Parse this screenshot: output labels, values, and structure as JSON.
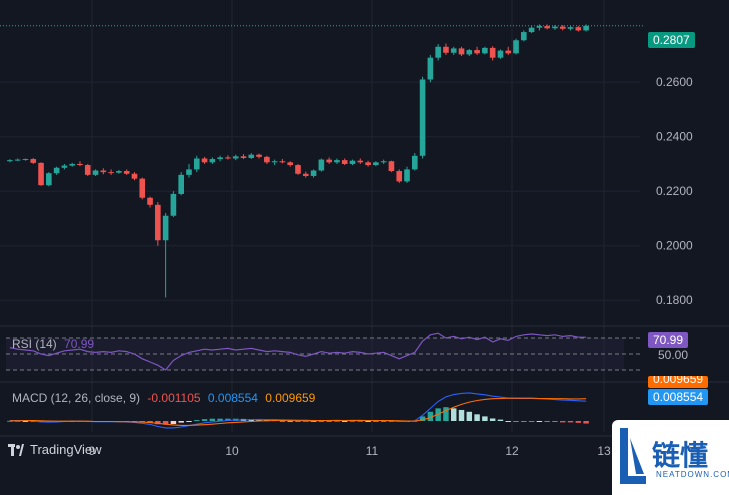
{
  "chart_data": {
    "type": "candlestick",
    "x_ticks": [
      "9",
      "10",
      "11",
      "12",
      "13"
    ],
    "y_ticks": [
      "0.2600",
      "0.2400",
      "0.2200",
      "0.2000",
      "0.1800"
    ],
    "ylim": [
      0.172,
      0.2865
    ],
    "last_price": "0.2807",
    "candles": [
      [
        0.231,
        0.2318,
        0.2306,
        0.2314
      ],
      [
        0.2314,
        0.232,
        0.231,
        0.2316
      ],
      [
        0.2316,
        0.232,
        0.2312,
        0.2318
      ],
      [
        0.2318,
        0.2322,
        0.23,
        0.2304
      ],
      [
        0.2304,
        0.2306,
        0.222,
        0.2222
      ],
      [
        0.2222,
        0.227,
        0.2218,
        0.2266
      ],
      [
        0.2266,
        0.229,
        0.226,
        0.2286
      ],
      [
        0.2286,
        0.23,
        0.228,
        0.2294
      ],
      [
        0.2294,
        0.2304,
        0.229,
        0.23
      ],
      [
        0.23,
        0.231,
        0.2292,
        0.2296
      ],
      [
        0.2296,
        0.23,
        0.2256,
        0.226
      ],
      [
        0.226,
        0.228,
        0.2256,
        0.2276
      ],
      [
        0.2276,
        0.2284,
        0.2262,
        0.227
      ],
      [
        0.227,
        0.228,
        0.226,
        0.2268
      ],
      [
        0.2268,
        0.2278,
        0.2264,
        0.2274
      ],
      [
        0.2274,
        0.228,
        0.226,
        0.2264
      ],
      [
        0.2264,
        0.227,
        0.224,
        0.2246
      ],
      [
        0.2246,
        0.225,
        0.217,
        0.2176
      ],
      [
        0.2176,
        0.218,
        0.214,
        0.215
      ],
      [
        0.215,
        0.216,
        0.2,
        0.202
      ],
      [
        0.202,
        0.212,
        0.181,
        0.211
      ],
      [
        0.211,
        0.22,
        0.2105,
        0.219
      ],
      [
        0.219,
        0.227,
        0.2185,
        0.226
      ],
      [
        0.226,
        0.23,
        0.225,
        0.228
      ],
      [
        0.228,
        0.233,
        0.227,
        0.232
      ],
      [
        0.232,
        0.2326,
        0.23,
        0.2306
      ],
      [
        0.2306,
        0.2324,
        0.23,
        0.2318
      ],
      [
        0.2318,
        0.233,
        0.231,
        0.2324
      ],
      [
        0.2324,
        0.2332,
        0.2316,
        0.232
      ],
      [
        0.232,
        0.2334,
        0.2314,
        0.2328
      ],
      [
        0.2328,
        0.2336,
        0.2318,
        0.2322
      ],
      [
        0.2322,
        0.234,
        0.2318,
        0.2334
      ],
      [
        0.2334,
        0.2338,
        0.232,
        0.2326
      ],
      [
        0.2326,
        0.233,
        0.23,
        0.2306
      ],
      [
        0.2306,
        0.2316,
        0.2296,
        0.231
      ],
      [
        0.231,
        0.2318,
        0.2302,
        0.2306
      ],
      [
        0.2306,
        0.231,
        0.229,
        0.2296
      ],
      [
        0.2296,
        0.23,
        0.226,
        0.2264
      ],
      [
        0.2264,
        0.2272,
        0.225,
        0.2256
      ],
      [
        0.2256,
        0.228,
        0.225,
        0.2276
      ],
      [
        0.2276,
        0.232,
        0.2272,
        0.2316
      ],
      [
        0.2316,
        0.2324,
        0.23,
        0.2306
      ],
      [
        0.2306,
        0.232,
        0.23,
        0.2314
      ],
      [
        0.2314,
        0.232,
        0.2296,
        0.23
      ],
      [
        0.23,
        0.2316,
        0.2296,
        0.2312
      ],
      [
        0.2312,
        0.232,
        0.23,
        0.2306
      ],
      [
        0.2306,
        0.2312,
        0.229,
        0.2296
      ],
      [
        0.2296,
        0.231,
        0.2292,
        0.2306
      ],
      [
        0.2306,
        0.2316,
        0.23,
        0.231
      ],
      [
        0.231,
        0.2312,
        0.227,
        0.2274
      ],
      [
        0.2274,
        0.228,
        0.223,
        0.2236
      ],
      [
        0.2236,
        0.229,
        0.223,
        0.228
      ],
      [
        0.228,
        0.234,
        0.2276,
        0.233
      ],
      [
        0.233,
        0.262,
        0.232,
        0.261
      ],
      [
        0.261,
        0.27,
        0.26,
        0.269
      ],
      [
        0.269,
        0.274,
        0.268,
        0.273
      ],
      [
        0.273,
        0.2742,
        0.27,
        0.2708
      ],
      [
        0.2708,
        0.273,
        0.27,
        0.2724
      ],
      [
        0.2724,
        0.273,
        0.2696,
        0.2702
      ],
      [
        0.2702,
        0.2722,
        0.2696,
        0.2718
      ],
      [
        0.2718,
        0.273,
        0.27,
        0.2706
      ],
      [
        0.2706,
        0.273,
        0.2702,
        0.2726
      ],
      [
        0.2726,
        0.2732,
        0.268,
        0.269
      ],
      [
        0.269,
        0.272,
        0.2686,
        0.2716
      ],
      [
        0.2716,
        0.273,
        0.27,
        0.2706
      ],
      [
        0.2706,
        0.276,
        0.2702,
        0.2754
      ],
      [
        0.2754,
        0.279,
        0.275,
        0.2784
      ],
      [
        0.2784,
        0.2808,
        0.278,
        0.28
      ],
      [
        0.28,
        0.2812,
        0.279,
        0.2806
      ],
      [
        0.2806,
        0.2812,
        0.2794,
        0.2798
      ],
      [
        0.2798,
        0.281,
        0.2792,
        0.2804
      ],
      [
        0.2804,
        0.281,
        0.279,
        0.2796
      ],
      [
        0.2796,
        0.2806,
        0.279,
        0.2802
      ],
      [
        0.2802,
        0.2806,
        0.2786,
        0.279
      ],
      [
        0.279,
        0.2812,
        0.2786,
        0.2807
      ]
    ],
    "colors": {
      "up": "#26a69a",
      "down": "#ef5350",
      "rsi": "#7e57c2",
      "macd_line": "#2962ff",
      "signal_line": "#ff6d00"
    },
    "rsi": {
      "label": "RSI (14)",
      "value": "70.99",
      "level_label": "50.00",
      "values": [
        58,
        56,
        55,
        54,
        50,
        48,
        51,
        54,
        55,
        56,
        53,
        52,
        53,
        52,
        54,
        53,
        50,
        44,
        40,
        36,
        30,
        42,
        48,
        52,
        54,
        56,
        55,
        56,
        57,
        55,
        56,
        57,
        55,
        53,
        54,
        53,
        52,
        49,
        47,
        50,
        53,
        51,
        52,
        51,
        53,
        52,
        50,
        51,
        52,
        48,
        44,
        48,
        52,
        66,
        74,
        76,
        70,
        72,
        69,
        71,
        68,
        71,
        65,
        69,
        67,
        72,
        74,
        75,
        74,
        73,
        74,
        72,
        73,
        71,
        71
      ]
    },
    "macd": {
      "label": "MACD (12, 26, close, 9)",
      "hist_value": "-0.001105",
      "macd_value": "0.008554",
      "signal_value": "0.009659",
      "scale_label": "0.009659",
      "macd_line": [
        0.0002,
        0.0002,
        0.0002,
        0.0001,
        -0.0004,
        -0.0005,
        -0.0004,
        -0.0002,
        -0.0001,
        0,
        -0.0002,
        -0.0003,
        -0.0003,
        -0.0003,
        -0.0003,
        -0.0004,
        -0.0006,
        -0.001,
        -0.0015,
        -0.0024,
        -0.003,
        -0.003,
        -0.0026,
        -0.002,
        -0.0014,
        -0.0008,
        -0.0004,
        -0.0001,
        0.0002,
        0.0004,
        0.0005,
        0.0006,
        0.0007,
        0.0006,
        0.0006,
        0.0005,
        0.0004,
        0.0002,
        0,
        0,
        0.0002,
        0.0002,
        0.0003,
        0.0002,
        0.0003,
        0.0003,
        0.0002,
        0.0002,
        0.0002,
        0.0001,
        -0.0002,
        -0.0002,
        0.0001,
        0.0025,
        0.0055,
        0.0085,
        0.0105,
        0.0115,
        0.012,
        0.0122,
        0.0118,
        0.0114,
        0.0108,
        0.0104,
        0.0099,
        0.0098,
        0.0098,
        0.0098,
        0.0097,
        0.0095,
        0.0093,
        0.0091,
        0.009,
        0.0088,
        0.0086
      ],
      "signal_line": [
        0.0001,
        0.0001,
        0.0002,
        0.0002,
        0.0001,
        0,
        -0.0001,
        -0.0001,
        -0.0001,
        -0.0001,
        -0.0001,
        -0.0002,
        -0.0002,
        -0.0002,
        -0.0003,
        -0.0003,
        -0.0004,
        -0.0005,
        -0.0007,
        -0.001,
        -0.0014,
        -0.0017,
        -0.0019,
        -0.0019,
        -0.0018,
        -0.0016,
        -0.0014,
        -0.0011,
        -0.0008,
        -0.0006,
        -0.0004,
        -0.0002,
        0,
        0.0001,
        0.0002,
        0.0003,
        0.0003,
        0.0003,
        0.0003,
        0.0002,
        0.0002,
        0.0002,
        0.0002,
        0.0002,
        0.0002,
        0.0002,
        0.0002,
        0.0002,
        0.0002,
        0.0002,
        0.0001,
        0,
        0,
        0.0005,
        0.0015,
        0.003,
        0.0045,
        0.006,
        0.0072,
        0.0082,
        0.0089,
        0.0094,
        0.0097,
        0.0098,
        0.0099,
        0.0099,
        0.0099,
        0.0099,
        0.0098,
        0.0098,
        0.0097,
        0.0097,
        0.0096,
        0.0096,
        0.0097
      ]
    }
  },
  "branding": {
    "tradingview_label": "TradingView",
    "watermark_text": "链懂",
    "watermark_sub": "NEATDOWN.COM"
  }
}
